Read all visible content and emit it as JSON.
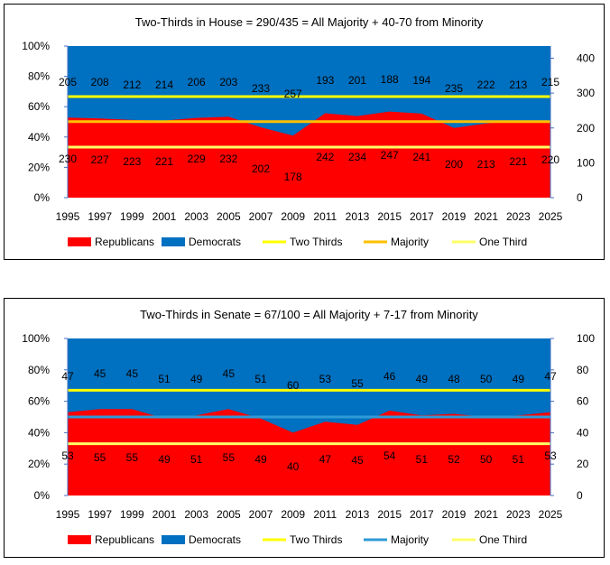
{
  "chart_data": [
    {
      "type": "area",
      "title": "Two-Thirds in House = 290/435  = All Majority + 40-70  from Minority",
      "categories": [
        "1995",
        "1997",
        "1999",
        "2001",
        "2003",
        "2005",
        "2007",
        "2009",
        "2011",
        "2013",
        "2015",
        "2017",
        "2019",
        "2021",
        "2023",
        "2025"
      ],
      "stacked_percent": true,
      "series": [
        {
          "name": "Republicans",
          "color": "#ff0000",
          "values": [
            230,
            227,
            223,
            221,
            229,
            232,
            202,
            178,
            242,
            234,
            247,
            241,
            200,
            213,
            221,
            220
          ]
        },
        {
          "name": "Democrats",
          "color": "#0070c0",
          "values": [
            205,
            208,
            212,
            214,
            206,
            203,
            233,
            257,
            193,
            201,
            188,
            194,
            235,
            222,
            213,
            215
          ]
        }
      ],
      "lines": [
        {
          "name": "Two Thirds",
          "color": "#ffff00",
          "value": 290
        },
        {
          "name": "Majority",
          "color": "#ffc000",
          "value": 218
        },
        {
          "name": "One Third",
          "color": "#ffff66",
          "value": 145
        }
      ],
      "left_axis": {
        "ticks": [
          "0%",
          "20%",
          "40%",
          "60%",
          "80%",
          "100%"
        ],
        "ylim": [
          0,
          100
        ]
      },
      "right_axis": {
        "ticks": [
          "0",
          "100",
          "200",
          "300",
          "400"
        ],
        "ylim": [
          0,
          435
        ]
      },
      "legend_position": "bottom"
    },
    {
      "type": "area",
      "title": "Two-Thirds in Senate = 67/100 = All Majority + 7-17 from Minority",
      "categories": [
        "1995",
        "1997",
        "1999",
        "2001",
        "2003",
        "2005",
        "2007",
        "2009",
        "2011",
        "2013",
        "2015",
        "2017",
        "2019",
        "2021",
        "2023",
        "2025"
      ],
      "stacked_percent": true,
      "series": [
        {
          "name": "Republicans",
          "color": "#ff0000",
          "values": [
            53,
            55,
            55,
            49,
            51,
            55,
            49,
            40,
            47,
            45,
            54,
            51,
            52,
            50,
            51,
            53
          ]
        },
        {
          "name": "Democrats",
          "color": "#0070c0",
          "values": [
            47,
            45,
            45,
            51,
            49,
            45,
            51,
            60,
            53,
            55,
            46,
            49,
            48,
            50,
            49,
            47
          ]
        }
      ],
      "lines": [
        {
          "name": "Two Thirds",
          "color": "#ffff00",
          "value": 67
        },
        {
          "name": "Majority",
          "color": "#2e9bd6",
          "value": 50
        },
        {
          "name": "One Third",
          "color": "#ffff66",
          "value": 33
        }
      ],
      "left_axis": {
        "ticks": [
          "0%",
          "20%",
          "40%",
          "60%",
          "80%",
          "100%"
        ],
        "ylim": [
          0,
          100
        ]
      },
      "right_axis": {
        "ticks": [
          "0",
          "20",
          "40",
          "60",
          "80",
          "100"
        ],
        "ylim": [
          0,
          100
        ]
      },
      "legend_position": "bottom"
    }
  ]
}
